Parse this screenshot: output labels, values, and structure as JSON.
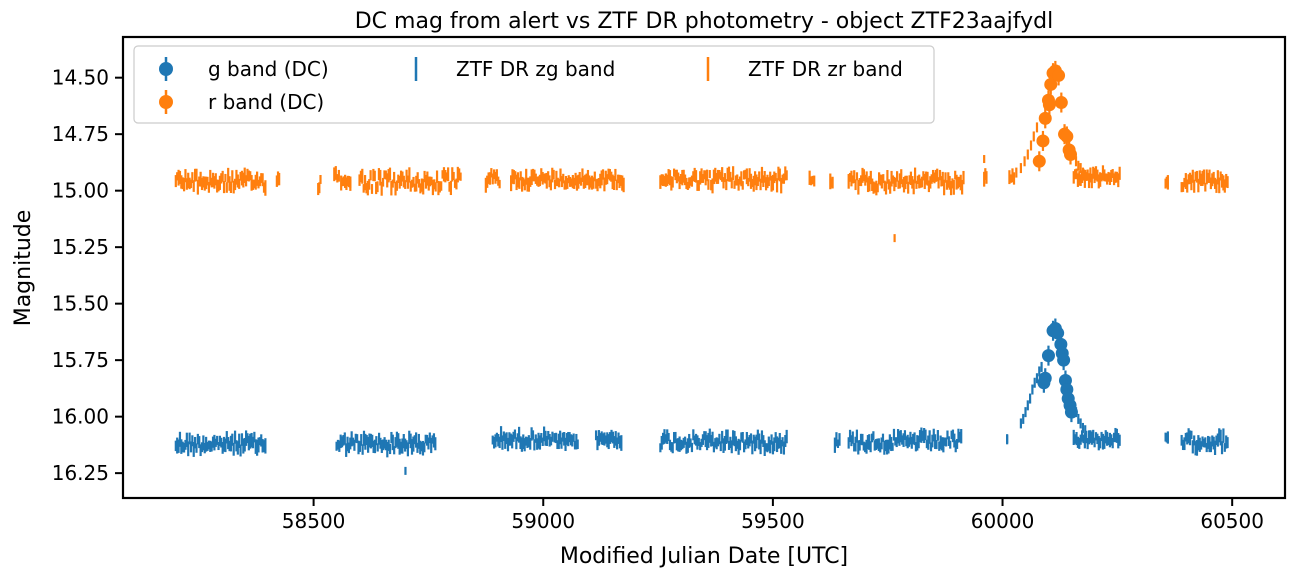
{
  "chart_data": {
    "type": "scatter",
    "title": "DC mag from alert vs ZTF DR photometry - object ZTF23aajfydl",
    "xlabel": "Modified Julian Date [UTC]",
    "ylabel": "Magnitude",
    "xlim": [
      58085,
      60615
    ],
    "ylim": [
      16.36,
      14.32
    ],
    "y_inverted": true,
    "xticks": [
      58500,
      59000,
      59500,
      60000,
      60500
    ],
    "xtick_labels": [
      "58500",
      "59000",
      "59500",
      "60000",
      "60500"
    ],
    "yticks": [
      14.5,
      14.75,
      15.0,
      15.25,
      15.5,
      15.75,
      16.0,
      16.25
    ],
    "ytick_labels": [
      "14.50",
      "14.75",
      "15.00",
      "15.25",
      "15.50",
      "15.75",
      "16.00",
      "16.25"
    ],
    "grid": false,
    "legend_placement": "top-left",
    "legend": [
      "g band (DC)",
      "r band (DC)",
      "ZTF DR zg band",
      "ZTF DR zr band"
    ],
    "series": [
      {
        "name": "ZTF DR zg band",
        "kind": "errorbar-only",
        "color": "#1f77b4",
        "segments": [
          {
            "x_start": 58200,
            "x_end": 58395,
            "mag": 16.12,
            "spread": 0.03
          },
          {
            "x_start": 58550,
            "x_end": 58765,
            "mag": 16.12,
            "spread": 0.03
          },
          {
            "x_start": 58890,
            "x_end": 59020,
            "mag": 16.1,
            "spread": 0.025
          },
          {
            "x_start": 59025,
            "x_end": 59075,
            "mag": 16.11,
            "spread": 0.02
          },
          {
            "x_start": 59115,
            "x_end": 59170,
            "mag": 16.1,
            "spread": 0.02
          },
          {
            "x_start": 59255,
            "x_end": 59530,
            "mag": 16.11,
            "spread": 0.03
          },
          {
            "x_start": 59635,
            "x_end": 59645,
            "mag": 16.11,
            "spread": 0.02
          },
          {
            "x_start": 59665,
            "x_end": 59910,
            "mag": 16.11,
            "spread": 0.03
          },
          {
            "x_start": 60010,
            "x_end": 60010,
            "mag": 16.1,
            "spread": 0.0
          },
          {
            "x_start": 60155,
            "x_end": 60255,
            "mag": 16.1,
            "spread": 0.02
          },
          {
            "x_start": 60355,
            "x_end": 60360,
            "mag": 16.1,
            "spread": 0.01
          },
          {
            "x_start": 60390,
            "x_end": 60490,
            "mag": 16.11,
            "spread": 0.03
          }
        ],
        "outliers": [
          {
            "x": 58700,
            "y": 16.24
          }
        ],
        "rise_decline": [
          {
            "x": 60040,
            "y": 16.03
          },
          {
            "x": 60045,
            "y": 16.01
          },
          {
            "x": 60050,
            "y": 15.98
          },
          {
            "x": 60055,
            "y": 15.95
          },
          {
            "x": 60060,
            "y": 15.92
          },
          {
            "x": 60065,
            "y": 15.88
          },
          {
            "x": 60070,
            "y": 15.85
          },
          {
            "x": 60075,
            "y": 15.83
          },
          {
            "x": 60080,
            "y": 15.8
          },
          {
            "x": 60085,
            "y": 15.78
          },
          {
            "x": 60160,
            "y": 15.98
          },
          {
            "x": 60165,
            "y": 16.01
          },
          {
            "x": 60170,
            "y": 16.03
          },
          {
            "x": 60175,
            "y": 16.05
          },
          {
            "x": 60180,
            "y": 16.06
          }
        ]
      },
      {
        "name": "ZTF DR zr band",
        "kind": "errorbar-only",
        "color": "#ff7f0e",
        "segments": [
          {
            "x_start": 58200,
            "x_end": 58395,
            "mag": 14.96,
            "spread": 0.03
          },
          {
            "x_start": 58420,
            "x_end": 58425,
            "mag": 14.95,
            "spread": 0.01
          },
          {
            "x_start": 58510,
            "x_end": 58515,
            "mag": 14.97,
            "spread": 0.03
          },
          {
            "x_start": 58545,
            "x_end": 58555,
            "mag": 14.93,
            "spread": 0.02
          },
          {
            "x_start": 58560,
            "x_end": 58580,
            "mag": 14.96,
            "spread": 0.01
          },
          {
            "x_start": 58600,
            "x_end": 58820,
            "mag": 14.96,
            "spread": 0.035
          },
          {
            "x_start": 58875,
            "x_end": 58905,
            "mag": 14.95,
            "spread": 0.03
          },
          {
            "x_start": 58930,
            "x_end": 59175,
            "mag": 14.95,
            "spread": 0.025
          },
          {
            "x_start": 59255,
            "x_end": 59530,
            "mag": 14.95,
            "spread": 0.03
          },
          {
            "x_start": 59580,
            "x_end": 59590,
            "mag": 14.95,
            "spread": 0.01
          },
          {
            "x_start": 59625,
            "x_end": 59630,
            "mag": 14.96,
            "spread": 0.01
          },
          {
            "x_start": 59665,
            "x_end": 59915,
            "mag": 14.96,
            "spread": 0.03
          },
          {
            "x_start": 59960,
            "x_end": 59965,
            "mag": 14.94,
            "spread": 0.03
          },
          {
            "x_start": 60015,
            "x_end": 60025,
            "mag": 14.94,
            "spread": 0.01
          },
          {
            "x_start": 60155,
            "x_end": 60255,
            "mag": 14.94,
            "spread": 0.02
          },
          {
            "x_start": 60355,
            "x_end": 60360,
            "mag": 14.97,
            "spread": 0.01
          },
          {
            "x_start": 60390,
            "x_end": 60490,
            "mag": 14.96,
            "spread": 0.025
          }
        ],
        "outliers": [
          {
            "x": 58580,
            "y": 14.97
          },
          {
            "x": 59765,
            "y": 15.21
          },
          {
            "x": 59960,
            "y": 14.86
          }
        ],
        "rise_decline": [
          {
            "x": 60030,
            "y": 14.92
          },
          {
            "x": 60040,
            "y": 14.9
          },
          {
            "x": 60048,
            "y": 14.87
          },
          {
            "x": 60055,
            "y": 14.84
          },
          {
            "x": 60062,
            "y": 14.8
          },
          {
            "x": 60068,
            "y": 14.76
          },
          {
            "x": 60075,
            "y": 14.72
          },
          {
            "x": 60155,
            "y": 14.84
          },
          {
            "x": 60160,
            "y": 14.87
          },
          {
            "x": 60165,
            "y": 14.89
          },
          {
            "x": 60170,
            "y": 14.9
          },
          {
            "x": 60175,
            "y": 14.92
          },
          {
            "x": 60180,
            "y": 14.93
          }
        ]
      },
      {
        "name": "g band (DC)",
        "kind": "points-with-errorbars",
        "color": "#1f77b4",
        "points": [
          {
            "x": 60090,
            "y": 15.85
          },
          {
            "x": 60093,
            "y": 15.83
          },
          {
            "x": 60100,
            "y": 15.73
          },
          {
            "x": 60110,
            "y": 15.62
          },
          {
            "x": 60115,
            "y": 15.61
          },
          {
            "x": 60120,
            "y": 15.63
          },
          {
            "x": 60127,
            "y": 15.68
          },
          {
            "x": 60130,
            "y": 15.72
          },
          {
            "x": 60133,
            "y": 15.75
          },
          {
            "x": 60137,
            "y": 15.84
          },
          {
            "x": 60140,
            "y": 15.88
          },
          {
            "x": 60143,
            "y": 15.92
          },
          {
            "x": 60147,
            "y": 15.95
          },
          {
            "x": 60150,
            "y": 15.98
          }
        ]
      },
      {
        "name": "r band (DC)",
        "kind": "points-with-errorbars",
        "color": "#ff7f0e",
        "points": [
          {
            "x": 60080,
            "y": 14.87
          },
          {
            "x": 60088,
            "y": 14.78
          },
          {
            "x": 60093,
            "y": 14.68
          },
          {
            "x": 60100,
            "y": 14.6
          },
          {
            "x": 60102,
            "y": 14.62
          },
          {
            "x": 60105,
            "y": 14.53
          },
          {
            "x": 60110,
            "y": 14.48
          },
          {
            "x": 60115,
            "y": 14.47
          },
          {
            "x": 60122,
            "y": 14.49
          },
          {
            "x": 60128,
            "y": 14.61
          },
          {
            "x": 60135,
            "y": 14.75
          },
          {
            "x": 60140,
            "y": 14.76
          },
          {
            "x": 60145,
            "y": 14.82
          },
          {
            "x": 60148,
            "y": 14.84
          }
        ]
      }
    ]
  },
  "colors": {
    "g": "#1f77b4",
    "r": "#ff7f0e"
  }
}
